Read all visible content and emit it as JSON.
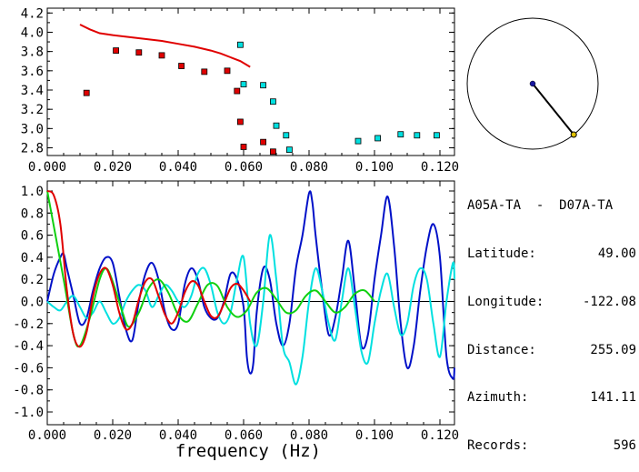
{
  "colors": {
    "red": "#e00000",
    "dark_blue": "#0010c8",
    "cyan": "#00e0e0",
    "green": "#10d010",
    "axis": "#000000"
  },
  "info": {
    "station_pair": "A05A-TA  -  D07A-TA",
    "rows": [
      {
        "label": "Latitude:",
        "value": "49.00"
      },
      {
        "label": "Longitude:",
        "value": "-122.08"
      },
      {
        "label": "Distance:",
        "value": "255.09"
      },
      {
        "label": "Azimuth:",
        "value": "141.11"
      },
      {
        "label": "Records:",
        "value": "596"
      }
    ]
  },
  "chart_data": [
    {
      "type": "scatter",
      "xlim": [
        0.0,
        0.12
      ],
      "ylim": [
        2.72,
        4.25
      ],
      "x_ticks": [
        "0.000",
        "0.020",
        "0.040",
        "0.060",
        "0.080",
        "0.100",
        "0.120"
      ],
      "y_ticks": [
        "2.8",
        "3.0",
        "3.2",
        "3.4",
        "3.6",
        "3.8",
        "4.0",
        "4.2"
      ],
      "red_curve": {
        "x": [
          0.01,
          0.013,
          0.016,
          0.02,
          0.025,
          0.03,
          0.035,
          0.04,
          0.045,
          0.05,
          0.053,
          0.056,
          0.059,
          0.062
        ],
        "y": [
          4.08,
          4.03,
          3.99,
          3.97,
          3.95,
          3.93,
          3.91,
          3.88,
          3.85,
          3.81,
          3.78,
          3.74,
          3.7,
          3.64
        ]
      },
      "red_points": {
        "x": [
          0.012,
          0.021,
          0.028,
          0.035,
          0.041,
          0.048,
          0.055,
          0.058,
          0.059,
          0.06,
          0.066,
          0.069
        ],
        "y": [
          3.37,
          3.81,
          3.79,
          3.76,
          3.65,
          3.59,
          3.6,
          3.39,
          3.07,
          2.81,
          2.86,
          2.76
        ]
      },
      "cyan_points": {
        "x": [
          0.059,
          0.06,
          0.066,
          0.069,
          0.07,
          0.073,
          0.074,
          0.095,
          0.101,
          0.108,
          0.113,
          0.119
        ],
        "y": [
          3.87,
          3.46,
          3.45,
          3.28,
          3.03,
          2.93,
          2.78,
          2.87,
          2.9,
          2.94,
          2.93,
          2.93
        ]
      }
    },
    {
      "type": "line",
      "xlabel": "frequency (Hz)",
      "xlim": [
        0.0,
        0.125
      ],
      "ylim": [
        -1.05,
        1.05
      ],
      "x_ticks": [
        "0.000",
        "0.020",
        "0.040",
        "0.060",
        "0.080",
        "0.100",
        "0.120"
      ],
      "y_ticks": [
        "1.0",
        "0.8",
        "0.6",
        "0.4",
        "0.2",
        "0.0",
        "-0.2",
        "-0.4",
        "-0.6",
        "-0.8",
        "-1.0"
      ],
      "series": [
        {
          "color": "#0010c8",
          "x": [
            0.0,
            0.002,
            0.004,
            0.005,
            0.006,
            0.008,
            0.01,
            0.012,
            0.014,
            0.016,
            0.018,
            0.02,
            0.022,
            0.024,
            0.026,
            0.028,
            0.03,
            0.032,
            0.034,
            0.036,
            0.038,
            0.04,
            0.042,
            0.044,
            0.046,
            0.048,
            0.05,
            0.052,
            0.054,
            0.056,
            0.058,
            0.06,
            0.061,
            0.062,
            0.063,
            0.064,
            0.066,
            0.068,
            0.07,
            0.072,
            0.074,
            0.076,
            0.078,
            0.08,
            0.081,
            0.082,
            0.084,
            0.086,
            0.088,
            0.09,
            0.092,
            0.094,
            0.096,
            0.098,
            0.1,
            0.102,
            0.104,
            0.106,
            0.108,
            0.11,
            0.112,
            0.114,
            0.116,
            0.118,
            0.12,
            0.122,
            0.124,
            0.125
          ],
          "y": [
            0.0,
            0.25,
            0.4,
            0.43,
            0.3,
            0.05,
            -0.2,
            -0.15,
            0.1,
            0.3,
            0.4,
            0.35,
            0.05,
            -0.25,
            -0.35,
            0.0,
            0.25,
            0.35,
            0.2,
            -0.1,
            -0.25,
            -0.2,
            0.15,
            0.3,
            0.2,
            -0.05,
            -0.15,
            -0.15,
            0.0,
            0.25,
            0.2,
            -0.05,
            -0.5,
            -0.65,
            -0.55,
            -0.1,
            0.3,
            0.2,
            -0.2,
            -0.4,
            -0.2,
            0.3,
            0.6,
            0.98,
            0.9,
            0.6,
            0.1,
            -0.3,
            -0.15,
            0.2,
            0.55,
            0.1,
            -0.4,
            -0.3,
            0.2,
            0.6,
            0.95,
            0.5,
            -0.2,
            -0.6,
            -0.4,
            0.1,
            0.5,
            0.7,
            0.4,
            -0.5,
            -0.7,
            -0.6
          ]
        },
        {
          "color": "#00e0e0",
          "x": [
            0.0,
            0.002,
            0.004,
            0.006,
            0.008,
            0.01,
            0.012,
            0.014,
            0.016,
            0.018,
            0.02,
            0.022,
            0.024,
            0.026,
            0.028,
            0.03,
            0.032,
            0.034,
            0.036,
            0.038,
            0.04,
            0.042,
            0.044,
            0.046,
            0.048,
            0.05,
            0.052,
            0.054,
            0.056,
            0.058,
            0.06,
            0.062,
            0.064,
            0.066,
            0.068,
            0.07,
            0.072,
            0.074,
            0.076,
            0.078,
            0.08,
            0.082,
            0.084,
            0.086,
            0.088,
            0.09,
            0.092,
            0.094,
            0.096,
            0.098,
            0.1,
            0.102,
            0.104,
            0.106,
            0.108,
            0.11,
            0.112,
            0.114,
            0.116,
            0.118,
            0.12,
            0.122,
            0.124,
            0.125
          ],
          "y": [
            0.0,
            -0.05,
            -0.08,
            0.0,
            0.05,
            -0.05,
            -0.15,
            -0.1,
            0.0,
            -0.1,
            -0.2,
            -0.15,
            0.0,
            0.1,
            0.15,
            0.1,
            -0.05,
            0.05,
            0.15,
            0.1,
            0.0,
            -0.05,
            0.05,
            0.25,
            0.3,
            0.15,
            -0.1,
            -0.2,
            -0.1,
            0.2,
            0.4,
            -0.2,
            -0.4,
            0.0,
            0.6,
            0.2,
            -0.4,
            -0.55,
            -0.75,
            -0.5,
            0.0,
            0.3,
            0.1,
            -0.2,
            -0.35,
            0.0,
            0.3,
            -0.05,
            -0.45,
            -0.55,
            -0.2,
            0.1,
            0.25,
            -0.05,
            -0.3,
            -0.2,
            0.15,
            0.3,
            0.2,
            -0.2,
            -0.5,
            0.0,
            0.35,
            0.2
          ]
        },
        {
          "color": "#10d010",
          "x": [
            0.0,
            0.005,
            0.008,
            0.01,
            0.013,
            0.016,
            0.018,
            0.02,
            0.023,
            0.025,
            0.028,
            0.031,
            0.034,
            0.037,
            0.04,
            0.043,
            0.046,
            0.049,
            0.052,
            0.055,
            0.058,
            0.061,
            0.064,
            0.067,
            0.07,
            0.073,
            0.076,
            0.079,
            0.082,
            0.085,
            0.088,
            0.091,
            0.094,
            0.097,
            0.1
          ],
          "y": [
            1.0,
            0.2,
            -0.3,
            -0.4,
            -0.15,
            0.2,
            0.3,
            0.18,
            -0.1,
            -0.23,
            -0.1,
            0.12,
            0.2,
            0.08,
            -0.12,
            -0.18,
            -0.02,
            0.15,
            0.14,
            -0.05,
            -0.14,
            -0.08,
            0.08,
            0.12,
            0.02,
            -0.1,
            -0.08,
            0.05,
            0.1,
            0.0,
            -0.1,
            -0.05,
            0.07,
            0.1,
            0.0
          ]
        },
        {
          "color": "#e00000",
          "x": [
            0.0,
            0.002,
            0.004,
            0.006,
            0.008,
            0.01,
            0.012,
            0.014,
            0.016,
            0.018,
            0.02,
            0.022,
            0.024,
            0.026,
            0.028,
            0.03,
            0.032,
            0.034,
            0.036,
            0.038,
            0.04,
            0.042,
            0.044,
            0.046,
            0.048,
            0.05,
            0.052,
            0.054,
            0.056,
            0.058,
            0.06,
            0.062
          ],
          "y": [
            1.0,
            0.96,
            0.7,
            0.1,
            -0.3,
            -0.41,
            -0.28,
            0.05,
            0.25,
            0.3,
            0.15,
            -0.1,
            -0.25,
            -0.2,
            0.02,
            0.18,
            0.2,
            0.05,
            -0.12,
            -0.2,
            -0.1,
            0.08,
            0.18,
            0.15,
            0.0,
            -0.13,
            -0.14,
            -0.02,
            0.12,
            0.16,
            0.1,
            0.0
          ]
        }
      ]
    },
    {
      "type": "scatter",
      "title": "",
      "azimuth_deg": 141.11,
      "note_polar": "circle with line from center toward azimuth"
    }
  ]
}
